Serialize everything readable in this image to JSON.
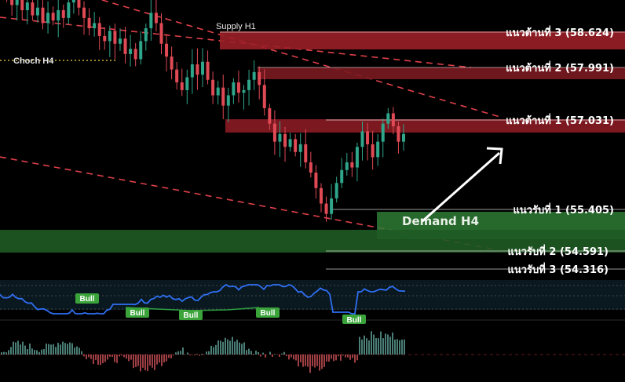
{
  "chart_data": {
    "type": "candlestick",
    "title": "",
    "grid": false,
    "price_range": [
      53.9,
      59.3
    ],
    "resistance_levels": [
      {
        "label": "แนวต้านที่ 3 (58.624)",
        "value": 58.624
      },
      {
        "label": "แนวต้านที่ 2 (57.991)",
        "value": 57.991
      },
      {
        "label": "แนวต้านที่ 1 (57.031)",
        "value": 57.031
      }
    ],
    "support_levels": [
      {
        "label": "แนวรับที่ 1 (55.405)",
        "value": 55.405
      },
      {
        "label": "แนวรับที่ 2 (54.591)",
        "value": 54.591
      },
      {
        "label": "แนวรับที่ 3 (54.316)",
        "value": 54.316
      }
    ],
    "zones": [
      {
        "label": "Supply H1",
        "type": "supply",
        "low": 58.4,
        "high": 58.624
      },
      {
        "label": "",
        "type": "supply",
        "low": 57.85,
        "high": 57.991
      },
      {
        "label": "",
        "type": "supply",
        "low": 56.88,
        "high": 57.031
      },
      {
        "label": "Demand H4",
        "type": "demand",
        "low": 55.05,
        "high": 55.405
      },
      {
        "label": "",
        "type": "demand",
        "low": 54.65,
        "high": 55.0
      }
    ],
    "marker_label": "Choch H4",
    "oscillator_signals": [
      "Bull",
      "Bull",
      "Bull",
      "Bull",
      "Bull"
    ],
    "close_series": [
      59.4,
      59.25,
      59.05,
      59.2,
      58.95,
      59.1,
      58.85,
      59.0,
      58.7,
      58.9,
      58.75,
      58.95,
      58.8,
      59.1,
      59.3,
      59.0,
      58.8,
      58.6,
      58.7,
      58.45,
      58.35,
      58.55,
      58.3,
      58.4,
      58.1,
      58.2,
      58.0,
      58.35,
      58.6,
      58.9,
      58.7,
      58.3,
      58.05,
      57.8,
      57.55,
      57.4,
      57.65,
      57.9,
      57.7,
      57.95,
      57.6,
      57.3,
      57.45,
      57.1,
      57.3,
      57.55,
      57.35,
      57.4,
      57.6,
      57.75,
      57.5,
      57.05,
      56.75,
      56.4,
      56.55,
      56.3,
      56.45,
      56.2,
      56.35,
      56.0,
      55.8,
      55.5,
      55.2,
      55.0,
      55.3,
      55.6,
      55.85,
      56.0,
      55.9,
      56.3,
      56.6,
      56.35,
      56.1,
      56.4,
      56.75,
      56.95,
      56.7,
      56.4,
      56.55
    ]
  }
}
